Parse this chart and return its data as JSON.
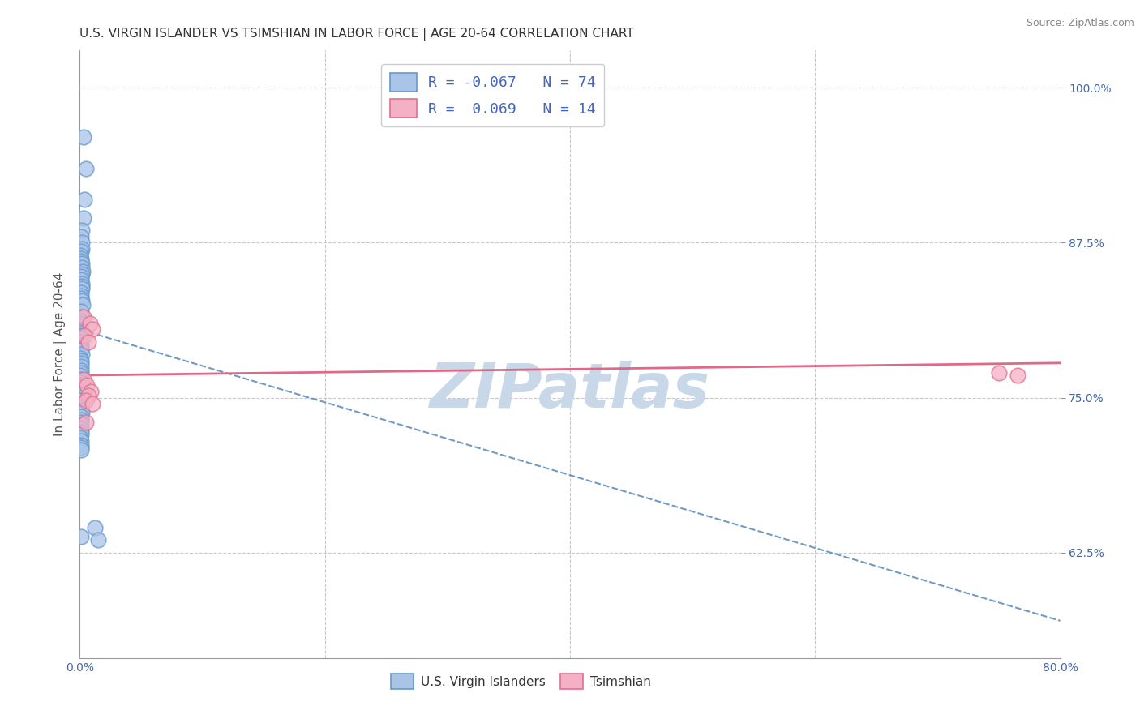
{
  "title": "U.S. VIRGIN ISLANDER VS TSIMSHIAN IN LABOR FORCE | AGE 20-64 CORRELATION CHART",
  "source": "Source: ZipAtlas.com",
  "ylabel": "In Labor Force | Age 20-64",
  "xlim": [
    0.0,
    80.0
  ],
  "ylim": [
    54.0,
    103.0
  ],
  "xticks": [
    0.0,
    20.0,
    40.0,
    60.0,
    80.0
  ],
  "xticklabels": [
    "0.0%",
    "",
    "",
    "",
    "80.0%"
  ],
  "yticks_right": [
    62.5,
    75.0,
    87.5,
    100.0
  ],
  "yticklabels_right": [
    "62.5%",
    "75.0%",
    "87.5%",
    "100.0%"
  ],
  "grid_color": "#c8c8c8",
  "background_color": "#ffffff",
  "legend_label1": "R = -0.067   N = 74",
  "legend_label2": "R =  0.069   N = 14",
  "scatter1_color": "#aac4e8",
  "scatter1_edge": "#6699cc",
  "scatter2_color": "#f4b0c4",
  "scatter2_edge": "#e07090",
  "line1_color": "#5588bb",
  "line2_color": "#e06080",
  "watermark": "ZIPatlas",
  "watermark_color": "#c8d8e8",
  "title_color": "#333333",
  "axis_label_color": "#555555",
  "tick_color": "#4466aa",
  "source_color": "#888888",
  "legend_text_color": "#4466bb",
  "us_vi_x": [
    0.3,
    0.5,
    0.4,
    0.3,
    0.2,
    0.1,
    0.2,
    0.15,
    0.1,
    0.05,
    0.1,
    0.08,
    0.15,
    0.2,
    0.25,
    0.15,
    0.1,
    0.12,
    0.18,
    0.2,
    0.15,
    0.1,
    0.08,
    0.12,
    0.18,
    0.22,
    0.1,
    0.15,
    0.12,
    0.08,
    0.1,
    0.12,
    0.08,
    0.1,
    0.12,
    0.06,
    0.08,
    0.1,
    0.12,
    0.15,
    0.06,
    0.08,
    0.12,
    0.1,
    0.08,
    0.12,
    0.06,
    0.08,
    0.1,
    0.08,
    0.12,
    0.08,
    0.1,
    0.12,
    0.06,
    0.08,
    0.1,
    0.12,
    0.15,
    0.08,
    0.1,
    1.2,
    1.5,
    0.06,
    0.08,
    0.1,
    0.12,
    0.08,
    0.06,
    0.08,
    0.12,
    0.08,
    0.12,
    0.1
  ],
  "us_vi_y": [
    96.0,
    93.5,
    91.0,
    89.5,
    88.5,
    88.0,
    87.5,
    87.0,
    86.8,
    86.5,
    86.2,
    86.0,
    85.8,
    85.5,
    85.2,
    85.0,
    84.8,
    84.5,
    84.2,
    84.0,
    83.8,
    83.5,
    83.2,
    83.0,
    82.8,
    82.5,
    82.0,
    81.5,
    81.2,
    81.0,
    80.8,
    80.5,
    80.2,
    80.0,
    79.8,
    79.5,
    79.2,
    79.0,
    78.8,
    78.5,
    78.2,
    78.0,
    77.8,
    77.5,
    77.2,
    77.0,
    76.8,
    76.5,
    76.2,
    76.0,
    75.8,
    75.5,
    75.2,
    75.0,
    74.8,
    74.5,
    74.2,
    74.0,
    73.8,
    73.5,
    73.2,
    64.5,
    63.5,
    73.0,
    72.8,
    72.5,
    72.2,
    72.0,
    71.8,
    71.5,
    71.2,
    71.0,
    63.8,
    70.8
  ],
  "tsimshian_x": [
    0.3,
    0.8,
    1.0,
    0.4,
    0.7,
    0.3,
    0.6,
    0.9,
    0.7,
    0.5,
    1.0,
    0.5,
    75.0,
    76.5
  ],
  "tsimshian_y": [
    81.5,
    81.0,
    80.5,
    80.0,
    79.5,
    76.5,
    76.0,
    75.5,
    75.2,
    74.8,
    74.5,
    73.0,
    77.0,
    76.8
  ],
  "blue_line_x": [
    0.0,
    80.0
  ],
  "blue_line_y": [
    80.5,
    57.0
  ],
  "pink_line_x": [
    0.0,
    80.0
  ],
  "pink_line_y": [
    76.8,
    77.8
  ]
}
